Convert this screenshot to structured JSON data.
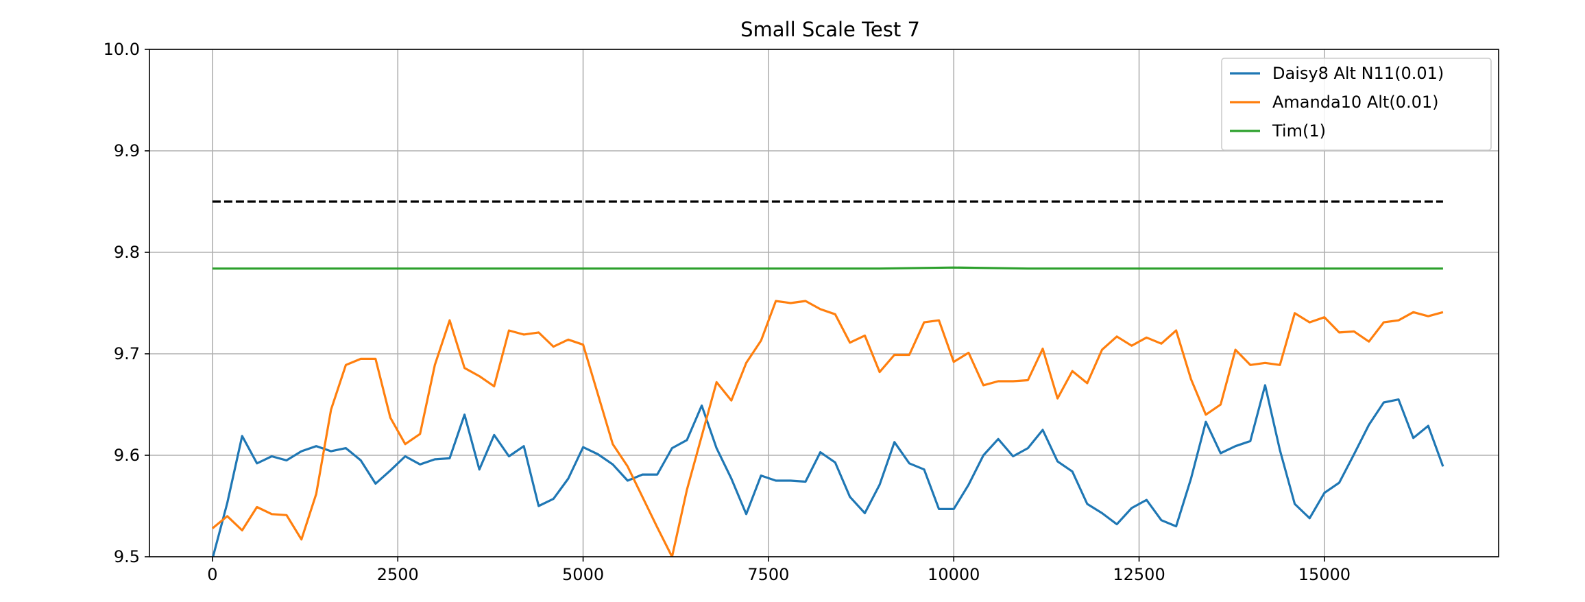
{
  "chart_data": {
    "type": "line",
    "title": "Small Scale Test 7",
    "xlabel": "",
    "ylabel": "",
    "xlim": [
      -850,
      17350
    ],
    "ylim": [
      9.5,
      10.0
    ],
    "x_ticks": [
      0,
      2500,
      5000,
      7500,
      10000,
      12500,
      15000
    ],
    "y_ticks": [
      9.5,
      9.6,
      9.7,
      9.8,
      9.9,
      10.0
    ],
    "grid": true,
    "legend_position": "upper right",
    "series": [
      {
        "name": "Daisy8 Alt N11(0.01)",
        "color": "#1f77b4",
        "x": [
          0,
          200,
          400,
          600,
          800,
          1000,
          1200,
          1400,
          1600,
          1800,
          2000,
          2200,
          2400,
          2600,
          2800,
          3000,
          3200,
          3400,
          3600,
          3800,
          4000,
          4200,
          4400,
          4600,
          4800,
          5000,
          5200,
          5400,
          5600,
          5800,
          6000,
          6200,
          6400,
          6600,
          6800,
          7000,
          7200,
          7400,
          7600,
          7800,
          8000,
          8200,
          8400,
          8600,
          8800,
          9000,
          9200,
          9400,
          9600,
          9800,
          10000,
          10200,
          10400,
          10600,
          10800,
          11000,
          11200,
          11400,
          11600,
          11800,
          12000,
          12200,
          12400,
          12600,
          12800,
          13000,
          13200,
          13400,
          13600,
          13800,
          14000,
          14200,
          14400,
          14600,
          14800,
          15000,
          15200,
          15400,
          15600,
          15800,
          16000,
          16200,
          16400,
          16600
        ],
        "y": [
          9.498,
          9.553,
          9.619,
          9.592,
          9.599,
          9.595,
          9.604,
          9.609,
          9.604,
          9.607,
          9.595,
          9.572,
          9.585,
          9.599,
          9.591,
          9.596,
          9.597,
          9.64,
          9.586,
          9.62,
          9.599,
          9.609,
          9.55,
          9.557,
          9.577,
          9.608,
          9.601,
          9.591,
          9.575,
          9.581,
          9.581,
          9.607,
          9.615,
          9.649,
          9.607,
          9.577,
          9.542,
          9.58,
          9.575,
          9.575,
          9.574,
          9.603,
          9.593,
          9.559,
          9.543,
          9.571,
          9.613,
          9.592,
          9.586,
          9.547,
          9.547,
          9.571,
          9.6,
          9.616,
          9.599,
          9.607,
          9.625,
          9.594,
          9.584,
          9.552,
          9.543,
          9.532,
          9.548,
          9.556,
          9.536,
          9.53,
          9.577,
          9.633,
          9.602,
          9.609,
          9.614,
          9.669,
          9.605,
          9.552,
          9.538,
          9.563,
          9.573,
          9.601,
          9.63,
          9.652,
          9.655,
          9.617,
          9.629,
          9.589
        ]
      },
      {
        "name": "Amanda10 Alt(0.01)",
        "color": "#ff7f0e",
        "x": [
          0,
          200,
          400,
          600,
          800,
          1000,
          1200,
          1400,
          1600,
          1800,
          2000,
          2200,
          2400,
          2600,
          2800,
          3000,
          3200,
          3400,
          3600,
          3800,
          4000,
          4200,
          4400,
          4600,
          4800,
          5000,
          5200,
          5400,
          5600,
          5800,
          6000,
          6200,
          6400,
          6600,
          6800,
          7000,
          7200,
          7400,
          7600,
          7800,
          8000,
          8200,
          8400,
          8600,
          8800,
          9000,
          9200,
          9400,
          9600,
          9800,
          10000,
          10200,
          10400,
          10600,
          10800,
          11000,
          11200,
          11400,
          11600,
          11800,
          12000,
          12200,
          12400,
          12600,
          12800,
          13000,
          13200,
          13400,
          13600,
          13800,
          14000,
          14200,
          14400,
          14600,
          14800,
          15000,
          15200,
          15400,
          15600,
          15800,
          16000,
          16200,
          16400,
          16600
        ],
        "y": [
          9.528,
          9.54,
          9.526,
          9.549,
          9.542,
          9.541,
          9.517,
          9.562,
          9.645,
          9.689,
          9.695,
          9.695,
          9.637,
          9.611,
          9.621,
          9.689,
          9.733,
          9.686,
          9.678,
          9.668,
          9.723,
          9.719,
          9.721,
          9.707,
          9.714,
          9.709,
          9.66,
          9.611,
          9.589,
          9.559,
          9.529,
          9.5,
          9.566,
          9.619,
          9.672,
          9.654,
          9.691,
          9.713,
          9.752,
          9.75,
          9.752,
          9.744,
          9.739,
          9.711,
          9.718,
          9.682,
          9.699,
          9.699,
          9.731,
          9.733,
          9.692,
          9.701,
          9.669,
          9.673,
          9.673,
          9.674,
          9.705,
          9.656,
          9.683,
          9.671,
          9.704,
          9.717,
          9.708,
          9.716,
          9.71,
          9.723,
          9.675,
          9.64,
          9.65,
          9.704,
          9.689,
          9.691,
          9.689,
          9.74,
          9.731,
          9.736,
          9.721,
          9.722,
          9.712,
          9.731,
          9.733,
          9.741,
          9.737,
          9.741
        ]
      },
      {
        "name": "Tim(1)",
        "color": "#2ca02c",
        "x": [
          0,
          1000,
          2000,
          3000,
          4000,
          5000,
          6000,
          7000,
          8000,
          9000,
          10000,
          11000,
          12000,
          13000,
          14000,
          15000,
          16000,
          16600
        ],
        "y": [
          9.784,
          9.784,
          9.784,
          9.784,
          9.784,
          9.784,
          9.784,
          9.784,
          9.784,
          9.784,
          9.785,
          9.784,
          9.784,
          9.784,
          9.784,
          9.784,
          9.784,
          9.784
        ]
      }
    ],
    "reference_line": {
      "y": 9.85,
      "x_start": 0,
      "x_end": 16600,
      "color": "#000000",
      "style": "dashed"
    }
  }
}
